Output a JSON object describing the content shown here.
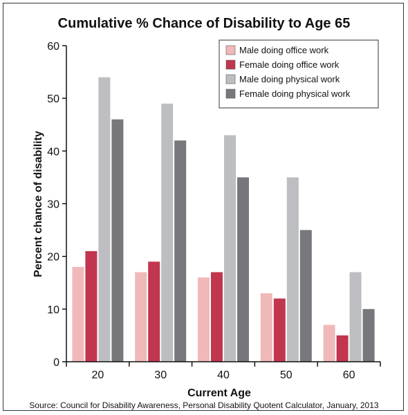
{
  "chart_data": {
    "type": "bar",
    "title": "Cumulative % Chance of Disability to Age 65",
    "xlabel": "Current Age",
    "ylabel": "Percent chance of disability",
    "categories": [
      "20",
      "30",
      "40",
      "50",
      "60"
    ],
    "ylim": [
      0,
      60
    ],
    "yticks": [
      0,
      10,
      20,
      30,
      40,
      50,
      60
    ],
    "grid": false,
    "legend_position": "top-right",
    "series": [
      {
        "name": "Male doing office work",
        "color": "#f0b9b9",
        "values": [
          18,
          17,
          16,
          13,
          7
        ]
      },
      {
        "name": "Female doing office work",
        "color": "#c1364e",
        "values": [
          21,
          19,
          17,
          12,
          5
        ]
      },
      {
        "name": "Male doing physical work",
        "color": "#bdbec2",
        "values": [
          54,
          49,
          43,
          35,
          17
        ]
      },
      {
        "name": "Female doing physical work",
        "color": "#77787c",
        "values": [
          46,
          42,
          35,
          25,
          10
        ]
      }
    ],
    "source": "Source: Council for Disability Awareness, Personal Disability Quotent Calculator, January, 2013"
  }
}
